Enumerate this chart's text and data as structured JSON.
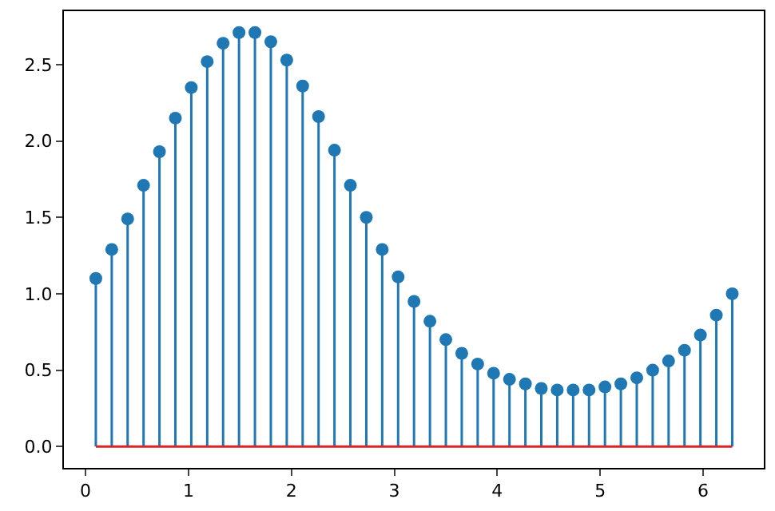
{
  "chart_data": {
    "type": "lollipop",
    "x": [
      0.1,
      0.2546,
      0.4092,
      0.5637,
      0.7183,
      0.8729,
      1.0275,
      1.1821,
      1.3366,
      1.4912,
      1.6458,
      1.8004,
      1.955,
      2.1095,
      2.2641,
      2.4187,
      2.5733,
      2.7279,
      2.8824,
      3.037,
      3.1916,
      3.3462,
      3.5008,
      3.6553,
      3.8099,
      3.9645,
      4.1191,
      4.2737,
      4.4282,
      4.5828,
      4.7374,
      4.892,
      5.0466,
      5.2011,
      5.3557,
      5.5103,
      5.6649,
      5.8195,
      5.974,
      6.1286,
      6.2832
    ],
    "series": [
      {
        "color": "#1f77b4",
        "values": [
          1.1,
          1.29,
          1.49,
          1.71,
          1.93,
          2.15,
          2.35,
          2.52,
          2.64,
          2.71,
          2.71,
          2.65,
          2.53,
          2.36,
          2.16,
          1.94,
          1.71,
          1.5,
          1.29,
          1.11,
          0.95,
          0.82,
          0.7,
          0.61,
          0.54,
          0.48,
          0.44,
          0.41,
          0.38,
          0.37,
          0.37,
          0.37,
          0.39,
          0.41,
          0.45,
          0.5,
          0.56,
          0.63,
          0.73,
          0.86,
          1.0
        ]
      }
    ],
    "ref_lines": [
      {
        "axis": "y",
        "value": 0,
        "color": "#d62728",
        "line_style": "solid"
      }
    ],
    "marker": "circle",
    "xlim": [
      -0.21,
      6.59
    ],
    "ylim": [
      -0.14,
      2.85
    ],
    "xticks": [
      0,
      1,
      2,
      3,
      4,
      5,
      6
    ],
    "yticks": [
      {
        "value": 0,
        "label": "0.0"
      },
      0.5,
      {
        "value": 1,
        "label": "1.0"
      },
      1.5,
      {
        "value": 2,
        "label": "2.0"
      },
      2.5
    ]
  }
}
